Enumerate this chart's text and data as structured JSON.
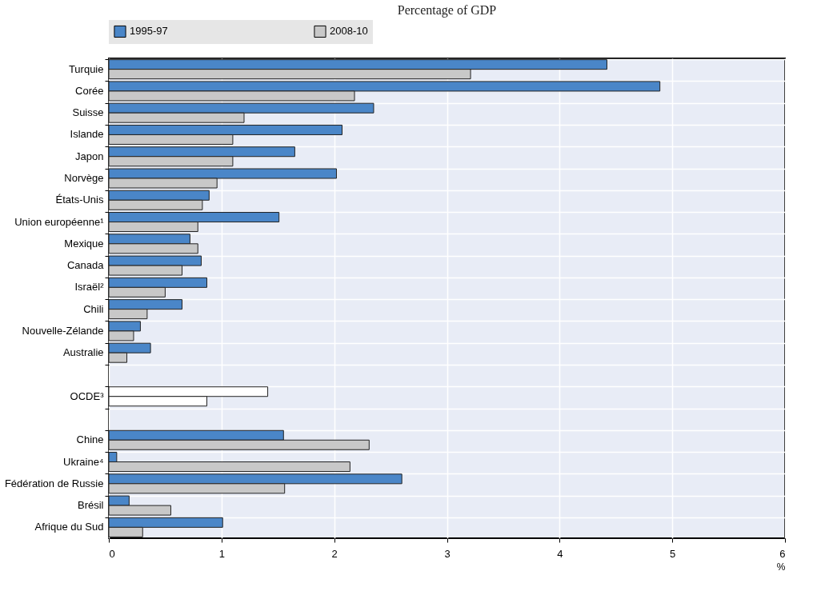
{
  "chart_data": {
    "type": "bar",
    "orientation": "horizontal",
    "subtitle": "Percentage of GDP",
    "xlabel": "%",
    "categories": [
      "Turquie",
      "Corée",
      "Suisse",
      "Islande",
      "Japon",
      "Norvège",
      "États-Unis",
      "Union européenne¹",
      "Mexique",
      "Canada",
      "Israël²",
      "Chili",
      "Nouvelle-Zélande",
      "Australie",
      null,
      "OCDE³",
      null,
      "Chine",
      "Ukraine⁴",
      "Fédération de Russie",
      "Brésil",
      "Afrique du Sud"
    ],
    "series": [
      {
        "name": "1995-97",
        "color": "#4a86c8",
        "colors": [
          "#4a86c8",
          "#4a86c8",
          "#4a86c8",
          "#4a86c8",
          "#4a86c8",
          "#4a86c8",
          "#4a86c8",
          "#4a86c8",
          "#4a86c8",
          "#4a86c8",
          "#4a86c8",
          "#4a86c8",
          "#4a86c8",
          "#4a86c8",
          null,
          "#ffffff",
          null,
          "#4a86c8",
          "#4a86c8",
          "#4a86c8",
          "#4a86c8",
          "#4a86c8"
        ],
        "values": [
          4.42,
          4.89,
          2.35,
          2.07,
          1.65,
          2.02,
          0.89,
          1.51,
          0.72,
          0.82,
          0.87,
          0.65,
          0.28,
          0.37,
          null,
          1.41,
          null,
          1.55,
          0.07,
          2.6,
          0.18,
          1.01
        ]
      },
      {
        "name": "2008-10",
        "color": "#c8c8c8",
        "colors": [
          "#c8c8c8",
          "#c8c8c8",
          "#c8c8c8",
          "#c8c8c8",
          "#c8c8c8",
          "#c8c8c8",
          "#c8c8c8",
          "#c8c8c8",
          "#c8c8c8",
          "#c8c8c8",
          "#c8c8c8",
          "#c8c8c8",
          "#c8c8c8",
          "#c8c8c8",
          null,
          "#ffffff",
          null,
          "#c8c8c8",
          "#c8c8c8",
          "#c8c8c8",
          "#c8c8c8",
          "#c8c8c8"
        ],
        "values": [
          3.21,
          2.18,
          1.2,
          1.1,
          1.1,
          0.96,
          0.83,
          0.79,
          0.79,
          0.65,
          0.5,
          0.34,
          0.22,
          0.16,
          null,
          0.87,
          null,
          2.31,
          2.14,
          1.56,
          0.55,
          0.3
        ]
      }
    ],
    "xlim": [
      0,
      6
    ],
    "xticks": [
      0,
      1,
      2,
      3,
      4,
      5,
      6
    ],
    "grid": true,
    "legend": "top"
  }
}
